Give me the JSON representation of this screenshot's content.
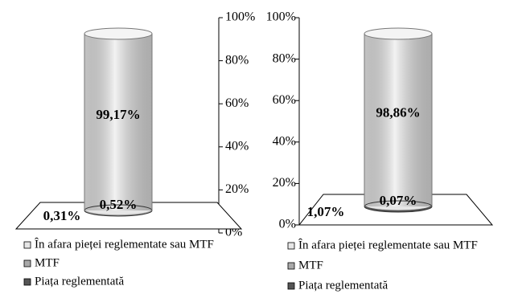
{
  "chart_data": [
    {
      "type": "bar",
      "series": [
        {
          "name": "În afara pieței reglementate sau MTF",
          "color": "#e6e6e6",
          "values": [
            99.17
          ],
          "value_labels": [
            "99,17%"
          ]
        },
        {
          "name": "MTF",
          "color": "#a9a9a9",
          "values": [
            0.52
          ],
          "value_labels": [
            "0,52%"
          ]
        },
        {
          "name": "Piața reglementată",
          "color": "#555555",
          "values": [
            0.31
          ],
          "value_labels": [
            "0,31%"
          ]
        }
      ],
      "ylim": [
        0,
        100
      ],
      "yticks": [
        {
          "value": 0,
          "label": "0%"
        },
        {
          "value": 20,
          "label": "20%"
        },
        {
          "value": 40,
          "label": "40%"
        },
        {
          "value": 60,
          "label": "60%"
        },
        {
          "value": 80,
          "label": "80%"
        },
        {
          "value": 100,
          "label": "100%"
        }
      ],
      "yaxis_side": "right"
    },
    {
      "type": "bar",
      "series": [
        {
          "name": "În afara pieței reglementate sau MTF",
          "color": "#e6e6e6",
          "values": [
            98.86
          ],
          "value_labels": [
            "98,86%"
          ]
        },
        {
          "name": "MTF",
          "color": "#a9a9a9",
          "values": [
            0.07
          ],
          "value_labels": [
            "0,07%"
          ]
        },
        {
          "name": "Piața reglementată",
          "color": "#555555",
          "values": [
            1.07
          ],
          "value_labels": [
            "1,07%"
          ]
        }
      ],
      "ylim": [
        0,
        100
      ],
      "yticks": [
        {
          "value": 0,
          "label": "0%"
        },
        {
          "value": 20,
          "label": "20%"
        },
        {
          "value": 40,
          "label": "40%"
        },
        {
          "value": 60,
          "label": "60%"
        },
        {
          "value": 80,
          "label": "80%"
        },
        {
          "value": 100,
          "label": "100%"
        }
      ],
      "yaxis_side": "left"
    }
  ]
}
